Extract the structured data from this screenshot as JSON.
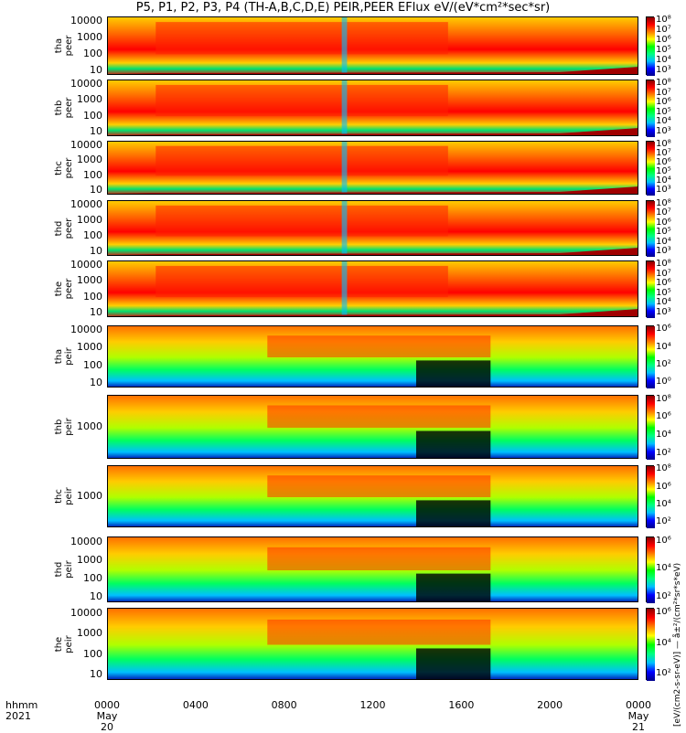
{
  "title": "P5, P1, P2, P3, P4 (TH-A,B,C,D,E) PEIR,PEER EFlux eV/(eV*cm²*sec*sr)",
  "colorbar_label": "[eV/(cm2-s-sr-eV)] — å±²/(cm²*sr*s*eV)",
  "footer": {
    "hhmm": "hhmm",
    "year": "2021"
  },
  "colors": {
    "low": "#00008b",
    "mid": "#00ff00",
    "high": "#ff0000",
    "max": "#8b0000"
  },
  "chart_data": {
    "type": "heatmap",
    "x_unit": "UT hhmm",
    "x_ticks": [
      {
        "label": "0000",
        "sub": "May 20"
      },
      {
        "label": "0400",
        "sub": ""
      },
      {
        "label": "0800",
        "sub": ""
      },
      {
        "label": "1200",
        "sub": ""
      },
      {
        "label": "1600",
        "sub": ""
      },
      {
        "label": "2000",
        "sub": ""
      },
      {
        "label": "0000",
        "sub": "May 21"
      }
    ],
    "xlim": [
      "2021-05-20 00:00",
      "2021-05-21 00:00"
    ],
    "y_scale": "log",
    "z_scale": "log",
    "panels": [
      {
        "ylabel": [
          "tha",
          "peer"
        ],
        "yticks": [
          "10000",
          "1000",
          "100",
          "10"
        ],
        "cbticks": [
          "10⁸",
          "10⁷",
          "10⁶",
          "10⁵",
          "10⁴",
          "10³"
        ]
      },
      {
        "ylabel": [
          "thb",
          "peer"
        ],
        "yticks": [
          "10000",
          "1000",
          "100",
          "10"
        ],
        "cbticks": [
          "10⁸",
          "10⁷",
          "10⁶",
          "10⁵",
          "10⁴",
          "10³"
        ]
      },
      {
        "ylabel": [
          "thc",
          "peer"
        ],
        "yticks": [
          "10000",
          "1000",
          "100",
          "10"
        ],
        "cbticks": [
          "10⁸",
          "10⁷",
          "10⁶",
          "10⁵",
          "10⁴",
          "10³"
        ]
      },
      {
        "ylabel": [
          "thd",
          "peer"
        ],
        "yticks": [
          "10000",
          "1000",
          "100",
          "10"
        ],
        "cbticks": [
          "10⁸",
          "10⁷",
          "10⁶",
          "10⁵",
          "10⁴",
          "10³"
        ]
      },
      {
        "ylabel": [
          "the",
          "peer"
        ],
        "yticks": [
          "10000",
          "1000",
          "100",
          "10"
        ],
        "cbticks": [
          "10⁸",
          "10⁷",
          "10⁶",
          "10⁵",
          "10⁴",
          "10³"
        ]
      },
      {
        "ylabel": [
          "tha",
          "peir"
        ],
        "yticks": [
          "10000",
          "1000",
          "100",
          "10"
        ],
        "cbticks": [
          "10⁶",
          "10⁴",
          "10²",
          "10⁰"
        ]
      },
      {
        "ylabel": [
          "thb",
          "peir"
        ],
        "yticks": [
          "1000"
        ],
        "cbticks": [
          "10⁸",
          "10⁶",
          "10⁴",
          "10²"
        ]
      },
      {
        "ylabel": [
          "thc",
          "peir"
        ],
        "yticks": [
          "1000"
        ],
        "cbticks": [
          "10⁸",
          "10⁶",
          "10⁴",
          "10²"
        ]
      },
      {
        "ylabel": [
          "thd",
          "peir"
        ],
        "yticks": [
          "10000",
          "1000",
          "100",
          "10"
        ],
        "cbticks": [
          "10⁶",
          "10⁴",
          "10²"
        ]
      },
      {
        "ylabel": [
          "the",
          "peir"
        ],
        "yticks": [
          "10000",
          "1000",
          "100",
          "10"
        ],
        "cbticks": [
          "10⁶",
          "10⁴",
          "10²"
        ]
      }
    ]
  }
}
